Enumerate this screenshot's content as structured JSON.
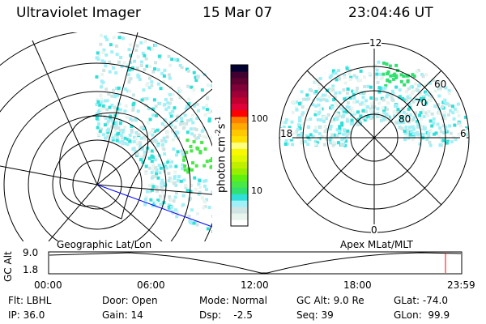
{
  "header": {
    "title": "Ultraviolet Imager",
    "date": "15 Mar 07",
    "time": "23:04:46 UT"
  },
  "colorbar": {
    "label": "photon cm",
    "exp1": "-2",
    "unit2": "s",
    "exp2": "-1",
    "ticks": [
      "100",
      "10"
    ],
    "colors": [
      "#ffffff",
      "#e8f4ee",
      "#d0e4e4",
      "#a0f0f8",
      "#30e0d8",
      "#30e070",
      "#48e848",
      "#60f010",
      "#98f000",
      "#c0f000",
      "#e0f800",
      "#f8f800",
      "#ffff80",
      "#ffe000",
      "#ffc800",
      "#ffa800",
      "#ff8000",
      "#ff0000",
      "#e0003a",
      "#c00030",
      "#a00038",
      "#800038",
      "#600030",
      "#400030",
      "#000030"
    ]
  },
  "left_map": {
    "caption": "Geographic Lat/Lon"
  },
  "right_map": {
    "caption": "Apex MLat/MLT",
    "mlt_labels": {
      "top": "12",
      "bottom": "0",
      "left": "18",
      "right": "6"
    },
    "lat_labels": [
      "60",
      "70",
      "80"
    ]
  },
  "timeline": {
    "ylabel": "GC Alt",
    "yticks": [
      "9.0",
      "1.8"
    ],
    "xticks": [
      "00:00",
      "06:00",
      "12:00",
      "18:00",
      "23:59"
    ],
    "current_marker_color": "#ff0000"
  },
  "info": {
    "row1": [
      "Flt: LBHL",
      "Door: Open",
      "Mode: Normal",
      "GC Alt: 9.0 Re",
      "GLat: -74.0"
    ],
    "row2": [
      "IP: 36.0",
      "Gain: 14",
      "Dsp:    -2.5",
      "Seq: 39",
      "GLon:  99.9"
    ]
  }
}
